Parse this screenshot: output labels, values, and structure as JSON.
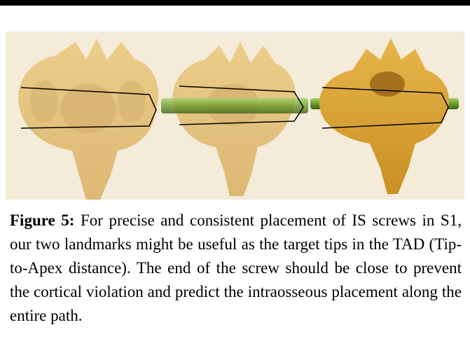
{
  "figure": {
    "label": "Figure 5:",
    "caption": "For precise and consistent placement of IS screws in S1, our two landmarks might be useful as the target tips in the TAD (Tip-to-Apex distance). The end of the screw should be close to prevent the cortical violation and predict the intraosseous placement along the entire path."
  }
}
